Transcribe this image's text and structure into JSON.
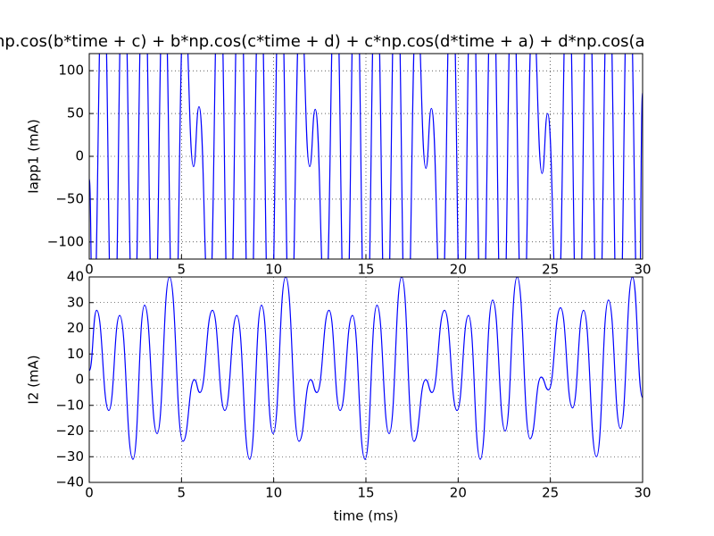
{
  "chart_data": [
    {
      "type": "line",
      "title": "np.cos(b*time + c) + b*np.cos(c*time + d) + c*np.cos(d*time + a) + d*np.cos(a",
      "ylabel": "Iapp1 (mA)",
      "color": "#0000ff",
      "grid": true,
      "xlim": [
        0,
        30
      ],
      "xticks": [
        0,
        5,
        10,
        15,
        20,
        25,
        30
      ],
      "ylim": [
        -120,
        120
      ],
      "yticks": [
        {
          "value": -100,
          "label": "−100"
        },
        {
          "value": -50,
          "label": "−50"
        },
        0,
        50,
        100
      ],
      "x": [
        0,
        0.2,
        0.75,
        1.3,
        1.85,
        2.4,
        2.95,
        3.5,
        4.05,
        4.6,
        5.15,
        5.65,
        5.95,
        6.5,
        7.05,
        7.6,
        8.15,
        8.7,
        9.25,
        9.8,
        10.35,
        10.9,
        11.45,
        11.95,
        12.25,
        12.8,
        13.35,
        13.9,
        14.45,
        15.0,
        15.55,
        16.1,
        16.65,
        17.2,
        17.75,
        18.25,
        18.55,
        19.1,
        19.65,
        20.2,
        20.75,
        21.3,
        21.85,
        22.4,
        22.95,
        23.5,
        24.05,
        24.55,
        24.85,
        25.4,
        25.95,
        26.5,
        27.05,
        27.6,
        28.15,
        28.7,
        29.25,
        29.8,
        30
      ],
      "values": [
        -26,
        -210,
        230,
        -260,
        240,
        -220,
        250,
        -240,
        220,
        -250,
        180,
        -12,
        58,
        -180,
        240,
        -230,
        260,
        -240,
        230,
        -250,
        240,
        -220,
        180,
        -12,
        55,
        -180,
        230,
        -240,
        250,
        -250,
        230,
        -230,
        250,
        -240,
        180,
        -14,
        56,
        -190,
        240,
        -250,
        250,
        -230,
        240,
        -250,
        230,
        -230,
        170,
        -20,
        50,
        -190,
        240,
        -250,
        250,
        -240,
        230,
        -250,
        240,
        -210,
        75
      ]
    },
    {
      "type": "line",
      "xlabel": "time (ms)",
      "ylabel": "I2 (mA)",
      "color": "#0000ff",
      "grid": true,
      "xlim": [
        0,
        30
      ],
      "xticks": [
        0,
        5,
        10,
        15,
        20,
        25,
        30
      ],
      "ylim": [
        -40,
        40
      ],
      "yticks": [
        {
          "value": -40,
          "label": "−40"
        },
        {
          "value": -30,
          "label": "−30"
        },
        {
          "value": -20,
          "label": "−20"
        },
        {
          "value": -10,
          "label": "−10"
        },
        0,
        10,
        20,
        30,
        40
      ],
      "x": [
        0,
        0.4,
        1.06,
        1.65,
        2.37,
        3.0,
        3.68,
        4.35,
        5.08,
        5.7,
        6.0,
        6.68,
        7.35,
        8.0,
        8.7,
        9.34,
        9.97,
        10.65,
        11.37,
        12.0,
        12.34,
        13.0,
        13.6,
        14.27,
        14.95,
        15.6,
        16.26,
        16.94,
        17.6,
        18.24,
        18.58,
        19.26,
        19.94,
        20.56,
        21.2,
        21.87,
        22.55,
        23.2,
        23.9,
        24.5,
        24.9,
        25.55,
        26.2,
        26.8,
        27.5,
        28.15,
        28.8,
        29.45,
        30
      ],
      "values": [
        3.5,
        27,
        -12,
        25,
        -31,
        29,
        -21,
        40,
        -24,
        0,
        -5,
        27,
        -12,
        25,
        -31,
        29,
        -21,
        40,
        -24,
        0,
        -5,
        27,
        -12,
        25,
        -31,
        29,
        -21,
        40,
        -24,
        0,
        -5,
        27,
        -12,
        25,
        -31,
        31,
        -20,
        40,
        -23,
        1,
        -4,
        28,
        -11,
        27,
        -30,
        31,
        -19,
        40,
        -7
      ]
    }
  ]
}
